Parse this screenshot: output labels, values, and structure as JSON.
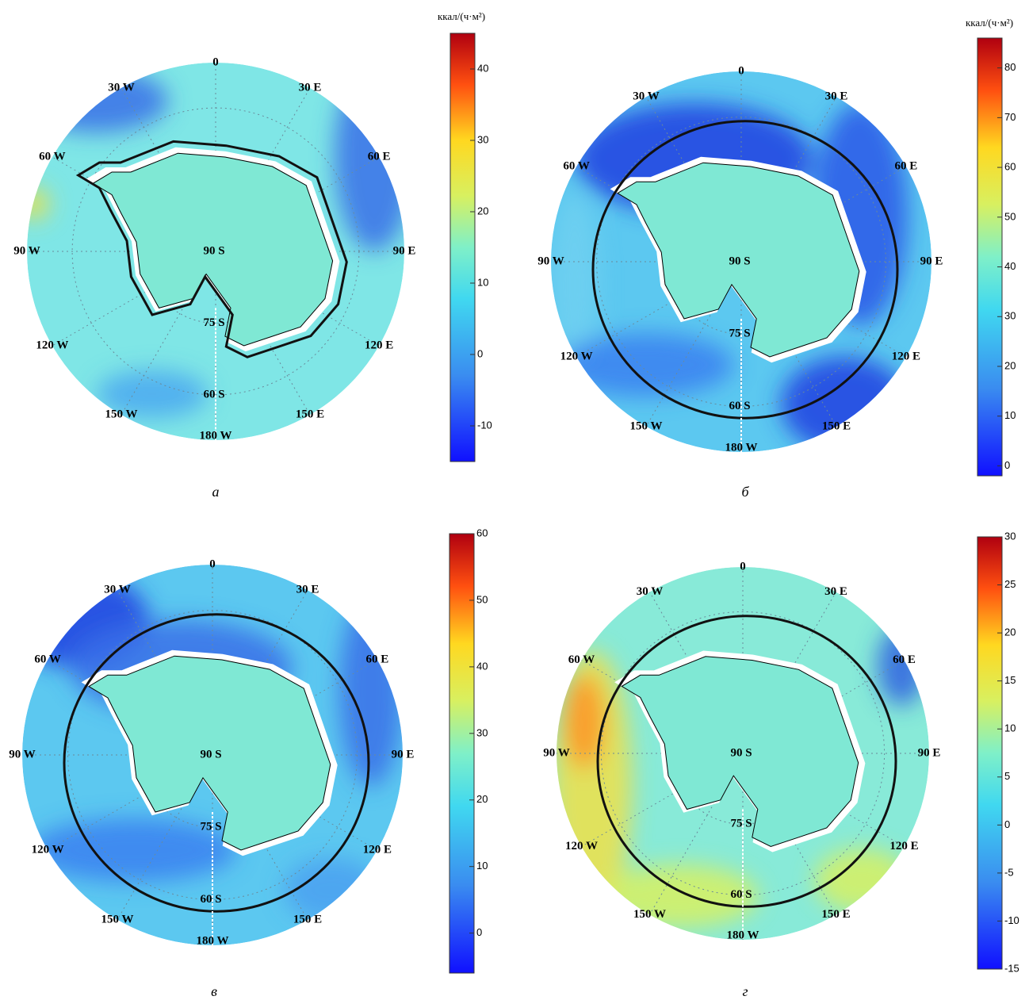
{
  "panels": [
    {
      "letter": "а",
      "unit": "ккал/(ч·м²)",
      "colorbar": {
        "lim": [
          -15,
          45
        ],
        "ticks": [
          -10,
          0,
          10,
          20,
          30,
          40
        ]
      },
      "labels": [
        "0",
        "30 W",
        "30 E",
        "60 W",
        "60 E",
        "90 W",
        "90 E",
        "120 W",
        "120 E",
        "150 W",
        "150 E",
        "180 W",
        "90 S",
        "75 S",
        "60 S"
      ]
    },
    {
      "letter": "б",
      "unit": "ккал/(ч·м²)",
      "colorbar": {
        "lim": [
          -2,
          86
        ],
        "ticks": [
          0,
          10,
          20,
          30,
          40,
          50,
          60,
          70,
          80
        ]
      },
      "labels": [
        "0",
        "30 W",
        "30 E",
        "60 W",
        "60 E",
        "90 W",
        "90 E",
        "120 W",
        "120 E",
        "150 W",
        "150 E",
        "180 W",
        "90 S",
        "75 S",
        "60 S"
      ]
    },
    {
      "letter": "в",
      "colorbar": {
        "lim": [
          -6,
          60
        ],
        "ticks": [
          0,
          10,
          20,
          30,
          40,
          50,
          60
        ]
      },
      "labels": [
        "0",
        "30 W",
        "30 E",
        "60 W",
        "60 E",
        "90 W",
        "90 E",
        "120 W",
        "120 E",
        "150 W",
        "150 E",
        "180 W",
        "90 S",
        "75 S",
        "60 S"
      ]
    },
    {
      "letter": "г",
      "colorbar": {
        "lim": [
          -15,
          30
        ],
        "ticks": [
          -15,
          -10,
          -5,
          0,
          5,
          10,
          15,
          20,
          25,
          30
        ]
      },
      "labels": [
        "0",
        "30 W",
        "30 E",
        "60 W",
        "60 E",
        "90 W",
        "90 E",
        "120 W",
        "120 E",
        "150 W",
        "150 E",
        "180 W",
        "90 S",
        "75 S",
        "60 S"
      ]
    }
  ]
}
